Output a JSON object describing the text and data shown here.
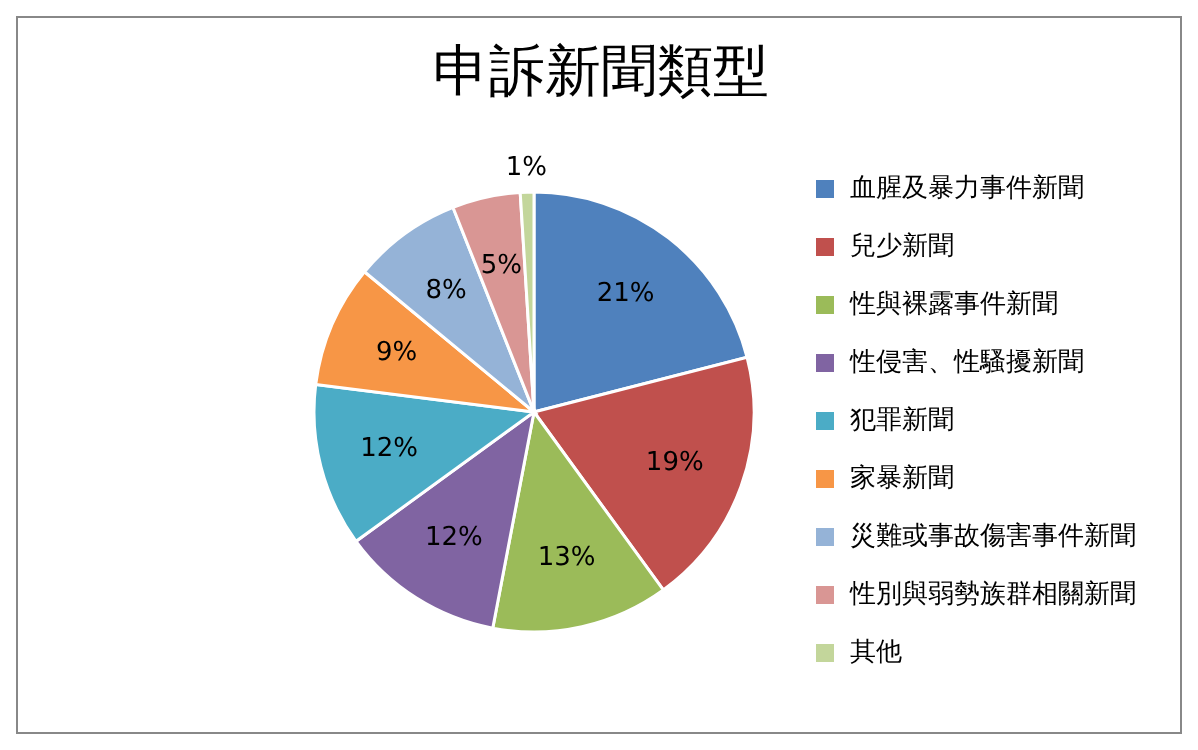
{
  "chart_data": {
    "type": "pie",
    "title": "申訴新聞類型",
    "categories": [
      "血腥及暴力事件新聞",
      "兒少新聞",
      "性與裸露事件新聞",
      "性侵害、性騷擾新聞",
      "犯罪新聞",
      "家暴新聞",
      "災難或事故傷害事件新聞",
      "性別與弱勢族群相關新聞",
      "其他"
    ],
    "values": [
      21,
      19,
      13,
      12,
      12,
      9,
      8,
      5,
      1
    ],
    "colors": [
      "#4f81bd",
      "#c0504d",
      "#9bbb59",
      "#8064a2",
      "#4bacc6",
      "#f79646",
      "#95b3d7",
      "#d99694",
      "#c3d69b"
    ],
    "value_labels": [
      "21%",
      "19%",
      "13%",
      "12%",
      "12%",
      "9%",
      "8%",
      "5%",
      "1%"
    ],
    "legend": "right"
  }
}
